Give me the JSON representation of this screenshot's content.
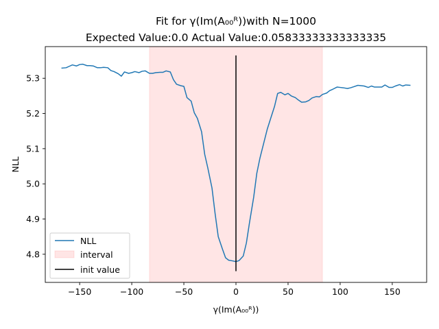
{
  "chart_data": {
    "type": "line",
    "title": "Fit for γ(Im(A₀₀ᴿ))with N=1000",
    "subtitle": "Expected Value:0.0 Actual Value:0.05833333333333335",
    "xlabel": "γ(Im(A₀₀ᴿ))",
    "ylabel": "NLL",
    "xlim": [
      -183,
      183
    ],
    "ylim": [
      4.72,
      5.39
    ],
    "xticks": [
      -150,
      -100,
      -50,
      0,
      50,
      100,
      150
    ],
    "yticks": [
      4.8,
      4.9,
      5.0,
      5.1,
      5.2,
      5.3
    ],
    "xtick_labels": [
      "−150",
      "−100",
      "−50",
      "0",
      "50",
      "100",
      "150"
    ],
    "ytick_labels": [
      "4.8",
      "4.9",
      "5.0",
      "5.1",
      "5.2",
      "5.3"
    ],
    "grid": false,
    "legend_position": "lower-left",
    "series": [
      {
        "name": "NLL",
        "color": "#1f77b4",
        "x": [
          -167,
          -163,
          -160,
          -157,
          -153,
          -150,
          -147,
          -143,
          -140,
          -137,
          -133,
          -130,
          -127,
          -123,
          -120,
          -117,
          -113,
          -110,
          -107,
          -103,
          -100,
          -97,
          -93,
          -90,
          -87,
          -83,
          -80,
          -77,
          -73,
          -70,
          -67,
          -63,
          -60,
          -57,
          -53,
          -50,
          -47,
          -43,
          -40,
          -37,
          -33,
          -30,
          -27,
          -23,
          -20,
          -17,
          -13,
          -10,
          -7,
          -3,
          0,
          3,
          7,
          10,
          13,
          17,
          20,
          23,
          27,
          30,
          33,
          37,
          40,
          43,
          47,
          50,
          53,
          57,
          60,
          63,
          67,
          70,
          73,
          77,
          80,
          83,
          87,
          90,
          93,
          97,
          100,
          103,
          107,
          110,
          113,
          117,
          120,
          123,
          127,
          130,
          133,
          137,
          140,
          143,
          147,
          150,
          153,
          157,
          160,
          163,
          167
        ],
        "y": [
          5.329,
          5.33,
          5.334,
          5.338,
          5.335,
          5.339,
          5.34,
          5.336,
          5.336,
          5.335,
          5.33,
          5.33,
          5.331,
          5.33,
          5.322,
          5.319,
          5.313,
          5.306,
          5.318,
          5.314,
          5.316,
          5.319,
          5.316,
          5.32,
          5.321,
          5.314,
          5.314,
          5.316,
          5.317,
          5.317,
          5.321,
          5.318,
          5.296,
          5.283,
          5.279,
          5.277,
          5.245,
          5.235,
          5.202,
          5.186,
          5.148,
          5.084,
          5.045,
          4.988,
          4.915,
          4.85,
          4.815,
          4.79,
          4.783,
          4.781,
          4.779,
          4.782,
          4.795,
          4.832,
          4.89,
          4.962,
          5.03,
          5.073,
          5.12,
          5.155,
          5.183,
          5.22,
          5.257,
          5.26,
          5.253,
          5.257,
          5.25,
          5.245,
          5.238,
          5.232,
          5.233,
          5.237,
          5.244,
          5.248,
          5.247,
          5.254,
          5.258,
          5.265,
          5.269,
          5.275,
          5.274,
          5.273,
          5.271,
          5.273,
          5.276,
          5.28,
          5.279,
          5.278,
          5.274,
          5.278,
          5.275,
          5.275,
          5.275,
          5.281,
          5.274,
          5.274,
          5.278,
          5.282,
          5.278,
          5.281,
          5.28
        ]
      }
    ],
    "interval": {
      "name": "interval",
      "x": [
        -83,
        83
      ],
      "color": "#ff0000",
      "alpha": 0.1
    },
    "init_value": {
      "name": "init value",
      "x": 0,
      "y": [
        4.752,
        5.365
      ],
      "color": "#000000"
    }
  }
}
